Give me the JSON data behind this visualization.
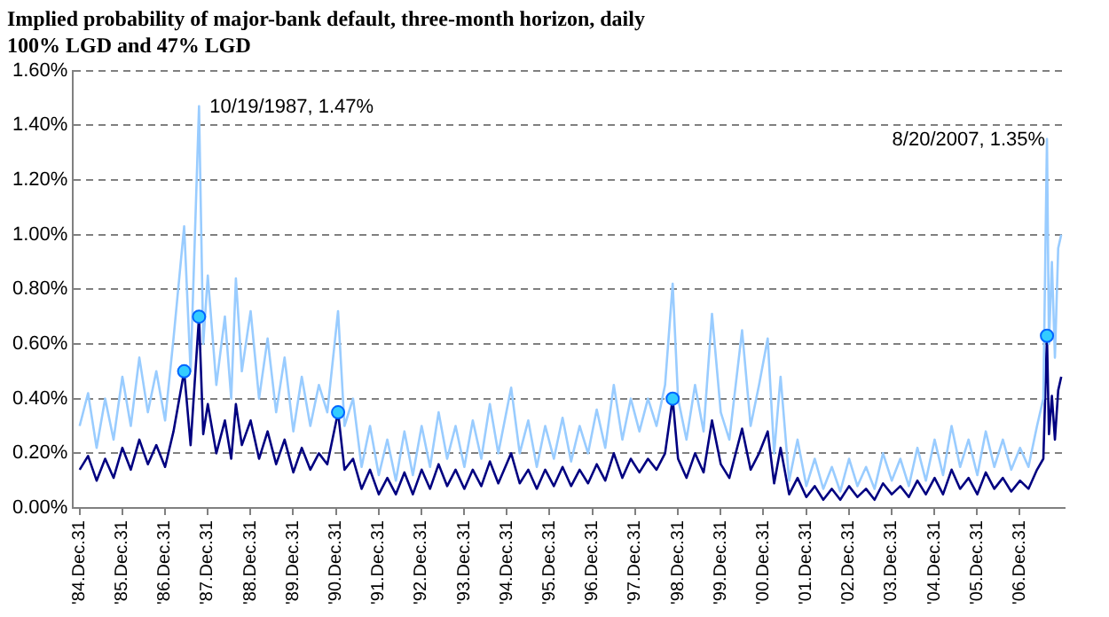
{
  "chart_data": {
    "type": "line",
    "title": "Implied probability of major-bank default, three-month horizon, daily",
    "subtitle": "100% LGD and 47% LGD",
    "x": [
      "1985-01-02",
      "1985-03-15",
      "1985-05-27",
      "1985-08-08",
      "1985-10-19",
      "1986-01-02",
      "1986-03-15",
      "1986-05-27",
      "1986-08-08",
      "1986-10-19",
      "1987-01-02",
      "1987-03-15",
      "1987-06-14",
      "1987-08-08",
      "1987-10-19",
      "1987-11-24",
      "1988-01-02",
      "1988-03-15",
      "1988-05-27",
      "1988-07-20",
      "1988-08-29",
      "1988-10-19",
      "1989-01-02",
      "1989-03-15",
      "1989-05-27",
      "1989-08-08",
      "1989-10-19",
      "1990-01-02",
      "1990-03-15",
      "1990-05-27",
      "1990-08-08",
      "1990-10-19",
      "1991-01-19",
      "1991-03-15",
      "1991-05-27",
      "1991-08-08",
      "1991-10-19",
      "1992-01-02",
      "1992-03-15",
      "1992-05-27",
      "1992-08-08",
      "1992-10-19",
      "1993-01-02",
      "1993-03-15",
      "1993-05-27",
      "1993-08-08",
      "1993-10-19",
      "1994-01-02",
      "1994-03-15",
      "1994-05-27",
      "1994-08-08",
      "1994-10-19",
      "1995-02-06",
      "1995-04-20",
      "1995-07-02",
      "1995-09-13",
      "1995-11-24",
      "1996-02-06",
      "1996-04-20",
      "1996-07-02",
      "1996-09-13",
      "1996-11-24",
      "1997-02-06",
      "1997-04-20",
      "1997-07-02",
      "1997-09-13",
      "1997-11-24",
      "1998-02-06",
      "1998-04-20",
      "1998-07-02",
      "1998-09-13",
      "1998-11-17",
      "1999-01-02",
      "1999-03-15",
      "1999-05-27",
      "1999-08-08",
      "1999-10-19",
      "2000-01-02",
      "2000-03-15",
      "2000-07-02",
      "2000-09-13",
      "2000-11-24",
      "2001-02-06",
      "2001-04-02",
      "2001-05-27",
      "2001-08-08",
      "2001-10-19",
      "2002-01-02",
      "2002-03-15",
      "2002-05-27",
      "2002-08-08",
      "2002-10-19",
      "2003-01-02",
      "2003-03-15",
      "2003-05-27",
      "2003-08-08",
      "2003-10-19",
      "2004-01-02",
      "2004-03-15",
      "2004-05-27",
      "2004-08-08",
      "2004-10-19",
      "2005-01-02",
      "2005-03-15",
      "2005-05-27",
      "2005-08-08",
      "2005-10-19",
      "2006-01-02",
      "2006-03-15",
      "2006-05-27",
      "2006-08-08",
      "2006-10-19",
      "2007-01-02",
      "2007-03-15",
      "2007-05-27",
      "2007-07-20",
      "2007-08-20",
      "2007-09-06",
      "2007-10-01",
      "2007-10-27",
      "2007-11-24",
      "2007-12-20"
    ],
    "series": [
      {
        "color": "#99ccff",
        "values": [
          0.3,
          0.42,
          0.22,
          0.4,
          0.25,
          0.48,
          0.3,
          0.55,
          0.35,
          0.5,
          0.32,
          0.62,
          1.03,
          0.5,
          1.47,
          0.6,
          0.85,
          0.45,
          0.7,
          0.4,
          0.84,
          0.5,
          0.72,
          0.4,
          0.62,
          0.35,
          0.55,
          0.28,
          0.48,
          0.3,
          0.45,
          0.35,
          0.72,
          0.3,
          0.4,
          0.15,
          0.3,
          0.12,
          0.25,
          0.1,
          0.28,
          0.12,
          0.3,
          0.15,
          0.35,
          0.18,
          0.3,
          0.15,
          0.32,
          0.18,
          0.38,
          0.2,
          0.44,
          0.2,
          0.32,
          0.15,
          0.3,
          0.18,
          0.33,
          0.17,
          0.3,
          0.2,
          0.36,
          0.22,
          0.45,
          0.25,
          0.4,
          0.28,
          0.4,
          0.3,
          0.45,
          0.82,
          0.4,
          0.25,
          0.45,
          0.28,
          0.71,
          0.35,
          0.25,
          0.65,
          0.3,
          0.45,
          0.62,
          0.2,
          0.48,
          0.1,
          0.25,
          0.08,
          0.18,
          0.07,
          0.15,
          0.06,
          0.18,
          0.08,
          0.15,
          0.07,
          0.2,
          0.1,
          0.18,
          0.08,
          0.22,
          0.1,
          0.25,
          0.12,
          0.3,
          0.15,
          0.25,
          0.12,
          0.28,
          0.15,
          0.25,
          0.14,
          0.22,
          0.15,
          0.3,
          0.4,
          1.35,
          0.6,
          0.9,
          0.55,
          0.95,
          1.0
        ]
      },
      {
        "color": "#000080",
        "values": [
          0.14,
          0.19,
          0.1,
          0.18,
          0.11,
          0.22,
          0.14,
          0.25,
          0.16,
          0.23,
          0.15,
          0.28,
          0.5,
          0.23,
          0.7,
          0.27,
          0.38,
          0.2,
          0.32,
          0.18,
          0.38,
          0.23,
          0.32,
          0.18,
          0.28,
          0.16,
          0.25,
          0.13,
          0.22,
          0.14,
          0.2,
          0.16,
          0.35,
          0.14,
          0.18,
          0.07,
          0.14,
          0.05,
          0.11,
          0.05,
          0.13,
          0.05,
          0.14,
          0.07,
          0.16,
          0.08,
          0.14,
          0.07,
          0.14,
          0.08,
          0.17,
          0.09,
          0.2,
          0.09,
          0.14,
          0.07,
          0.14,
          0.08,
          0.15,
          0.08,
          0.14,
          0.09,
          0.16,
          0.1,
          0.2,
          0.11,
          0.18,
          0.13,
          0.18,
          0.14,
          0.2,
          0.4,
          0.18,
          0.11,
          0.2,
          0.13,
          0.32,
          0.16,
          0.11,
          0.29,
          0.14,
          0.2,
          0.28,
          0.09,
          0.22,
          0.05,
          0.11,
          0.04,
          0.08,
          0.03,
          0.07,
          0.03,
          0.08,
          0.04,
          0.07,
          0.03,
          0.09,
          0.05,
          0.08,
          0.04,
          0.1,
          0.05,
          0.11,
          0.05,
          0.14,
          0.07,
          0.11,
          0.05,
          0.13,
          0.07,
          0.11,
          0.06,
          0.1,
          0.07,
          0.14,
          0.18,
          0.63,
          0.27,
          0.41,
          0.25,
          0.43,
          0.48
        ]
      },
      {
        "type": "scatter",
        "marker": "circle",
        "color": "#33ccff",
        "x": [
          "1987-06-14",
          "1987-10-19",
          "1991-01-19",
          "1998-11-17",
          "2007-08-20"
        ],
        "values": [
          0.5,
          0.7,
          0.35,
          0.4,
          0.63
        ]
      }
    ],
    "xlim": [
      "1984-11-07",
      "2008-01-18"
    ],
    "xticks": [
      {
        "value": "1984-12-31",
        "label": "'84.Dec.31"
      },
      {
        "value": "1985-12-31",
        "label": "'85.Dec.31"
      },
      {
        "value": "1986-12-31",
        "label": "'86.Dec.31"
      },
      {
        "value": "1987-12-31",
        "label": "'87.Dec.31"
      },
      {
        "value": "1988-12-31",
        "label": "'88.Dec.31"
      },
      {
        "value": "1989-12-31",
        "label": "'89.Dec.31"
      },
      {
        "value": "1990-12-31",
        "label": "'90.Dec.31"
      },
      {
        "value": "1991-12-31",
        "label": "'91.Dec.31"
      },
      {
        "value": "1992-12-31",
        "label": "'92.Dec.31"
      },
      {
        "value": "1993-12-31",
        "label": "'93.Dec.31"
      },
      {
        "value": "1994-12-31",
        "label": "'94.Dec.31"
      },
      {
        "value": "1995-12-31",
        "label": "'95.Dec.31"
      },
      {
        "value": "1996-12-31",
        "label": "'96.Dec.31"
      },
      {
        "value": "1997-12-31",
        "label": "'97.Dec.31"
      },
      {
        "value": "1998-12-31",
        "label": "'98.Dec.31"
      },
      {
        "value": "1999-12-31",
        "label": "'99.Dec.31"
      },
      {
        "value": "2000-12-31",
        "label": "'00.Dec.31"
      },
      {
        "value": "2001-12-31",
        "label": "'01.Dec.31"
      },
      {
        "value": "2002-12-31",
        "label": "'02.Dec.31"
      },
      {
        "value": "2003-12-31",
        "label": "'03.Dec.31"
      },
      {
        "value": "2004-12-31",
        "label": "'04.Dec.31"
      },
      {
        "value": "2005-12-31",
        "label": "'05.Dec.31"
      },
      {
        "value": "2006-12-31",
        "label": "'06.Dec.31"
      }
    ],
    "ylim": [
      0,
      1.6
    ],
    "yticks": [
      {
        "value": 0,
        "label": "0.00%"
      },
      {
        "value": 0.2,
        "label": "0.20%"
      },
      {
        "value": 0.4,
        "label": "0.40%"
      },
      {
        "value": 0.6,
        "label": "0.60%"
      },
      {
        "value": 0.8,
        "label": "0.80%"
      },
      {
        "value": 1.0,
        "label": "1.00%"
      },
      {
        "value": 1.2,
        "label": "1.20%"
      },
      {
        "value": 1.4,
        "label": "1.40%"
      },
      {
        "value": 1.6,
        "label": "1.60%"
      }
    ],
    "grid": "y",
    "legend": false,
    "marker": "none",
    "line_style": "solid",
    "annotations": [
      {
        "text": "10/19/1987, 1.47%",
        "x": "1987-10-19",
        "y": 1.47
      },
      {
        "text": "8/20/2007, 1.35%",
        "x": "2007-08-20",
        "y": 1.35
      }
    ]
  }
}
